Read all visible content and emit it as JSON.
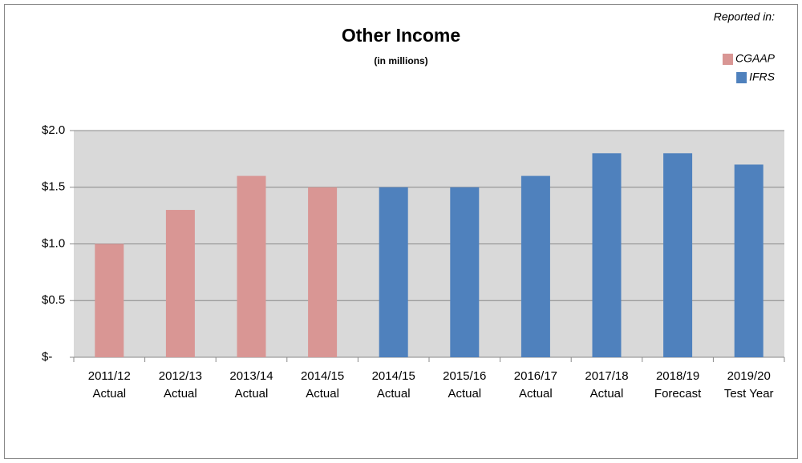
{
  "chart_data": {
    "type": "bar",
    "title": "Other Income",
    "subtitle": "(in millions)",
    "legend_title": "Reported in:",
    "categories": [
      "2011/12 Actual",
      "2012/13 Actual",
      "2013/14 Actual",
      "2014/15 Actual",
      "2014/15 Actual",
      "2015/16 Actual",
      "2016/17 Actual",
      "2017/18 Actual",
      "2018/19 Forecast",
      "2019/20 Test Year"
    ],
    "series": [
      {
        "name": "CGAAP",
        "color": "#d99694",
        "values": [
          1.0,
          1.3,
          1.6,
          1.5,
          null,
          null,
          null,
          null,
          null,
          null
        ]
      },
      {
        "name": "IFRS",
        "color": "#4f81bd",
        "values": [
          null,
          null,
          null,
          null,
          1.5,
          1.5,
          1.6,
          1.8,
          1.8,
          1.7
        ]
      }
    ],
    "ylim": [
      0,
      2.0
    ],
    "yticks": [
      {
        "value": 0,
        "label": "$-"
      },
      {
        "value": 0.5,
        "label": "$0.5"
      },
      {
        "value": 1.0,
        "label": "$1.0"
      },
      {
        "value": 1.5,
        "label": "$1.5"
      },
      {
        "value": 2.0,
        "label": "$2.0"
      }
    ],
    "grid": true,
    "legend": "top-right"
  }
}
